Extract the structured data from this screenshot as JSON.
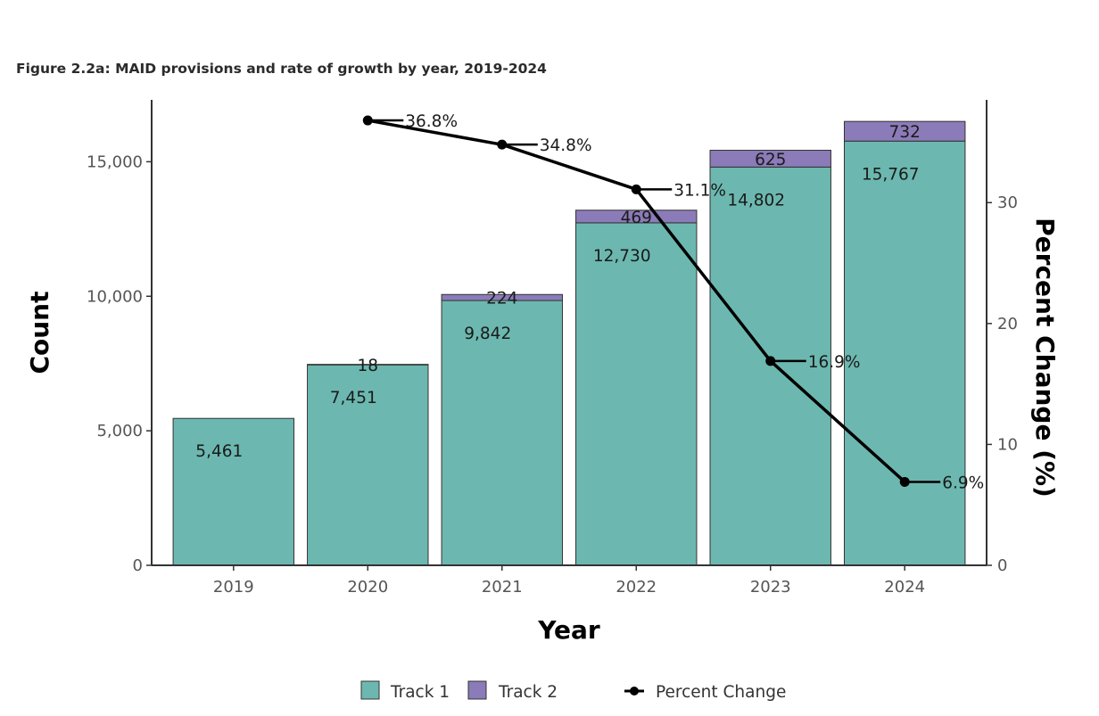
{
  "chart_data": {
    "type": "bar",
    "stacked": true,
    "title": "Figure 2.2a: MAID provisions and rate of growth by year, 2019-2024",
    "xlabel": "Year",
    "ylabel": "Count",
    "y2label": "Percent Change (%)",
    "categories": [
      "2019",
      "2020",
      "2021",
      "2022",
      "2023",
      "2024"
    ],
    "series": [
      {
        "name": "Track 1",
        "type": "bar",
        "color": "#6cb8b0",
        "values": [
          5461,
          7451,
          9842,
          12730,
          14802,
          15767
        ],
        "labels": [
          "5,461",
          "7,451",
          "9,842",
          "12,730",
          "14,802",
          "15,767"
        ]
      },
      {
        "name": "Track 2",
        "type": "bar",
        "color": "#8b7bb8",
        "values": [
          0,
          18,
          224,
          469,
          625,
          732
        ],
        "labels": [
          "",
          "18",
          "224",
          "469",
          "625",
          "732"
        ]
      },
      {
        "name": "Percent Change",
        "type": "line",
        "axis": "right",
        "color": "#000000",
        "values": [
          null,
          36.8,
          34.8,
          31.1,
          16.9,
          6.9
        ],
        "labels": [
          "",
          "36.8%",
          "34.8%",
          "31.1%",
          "16.9%",
          "6.9%"
        ]
      }
    ],
    "ylim": [
      0,
      17300
    ],
    "yticks": [
      0,
      5000,
      10000,
      15000
    ],
    "ytick_labels": [
      "0",
      "5,000",
      "10,000",
      "15,000"
    ],
    "y2lim": [
      0,
      38.5
    ],
    "y2ticks": [
      0,
      10,
      20,
      30
    ],
    "y2tick_labels": [
      "0",
      "10",
      "20",
      "30"
    ],
    "grid": false,
    "legend": {
      "position": "bottom",
      "items": [
        "Track 1",
        "Track 2",
        "Percent Change"
      ]
    }
  }
}
